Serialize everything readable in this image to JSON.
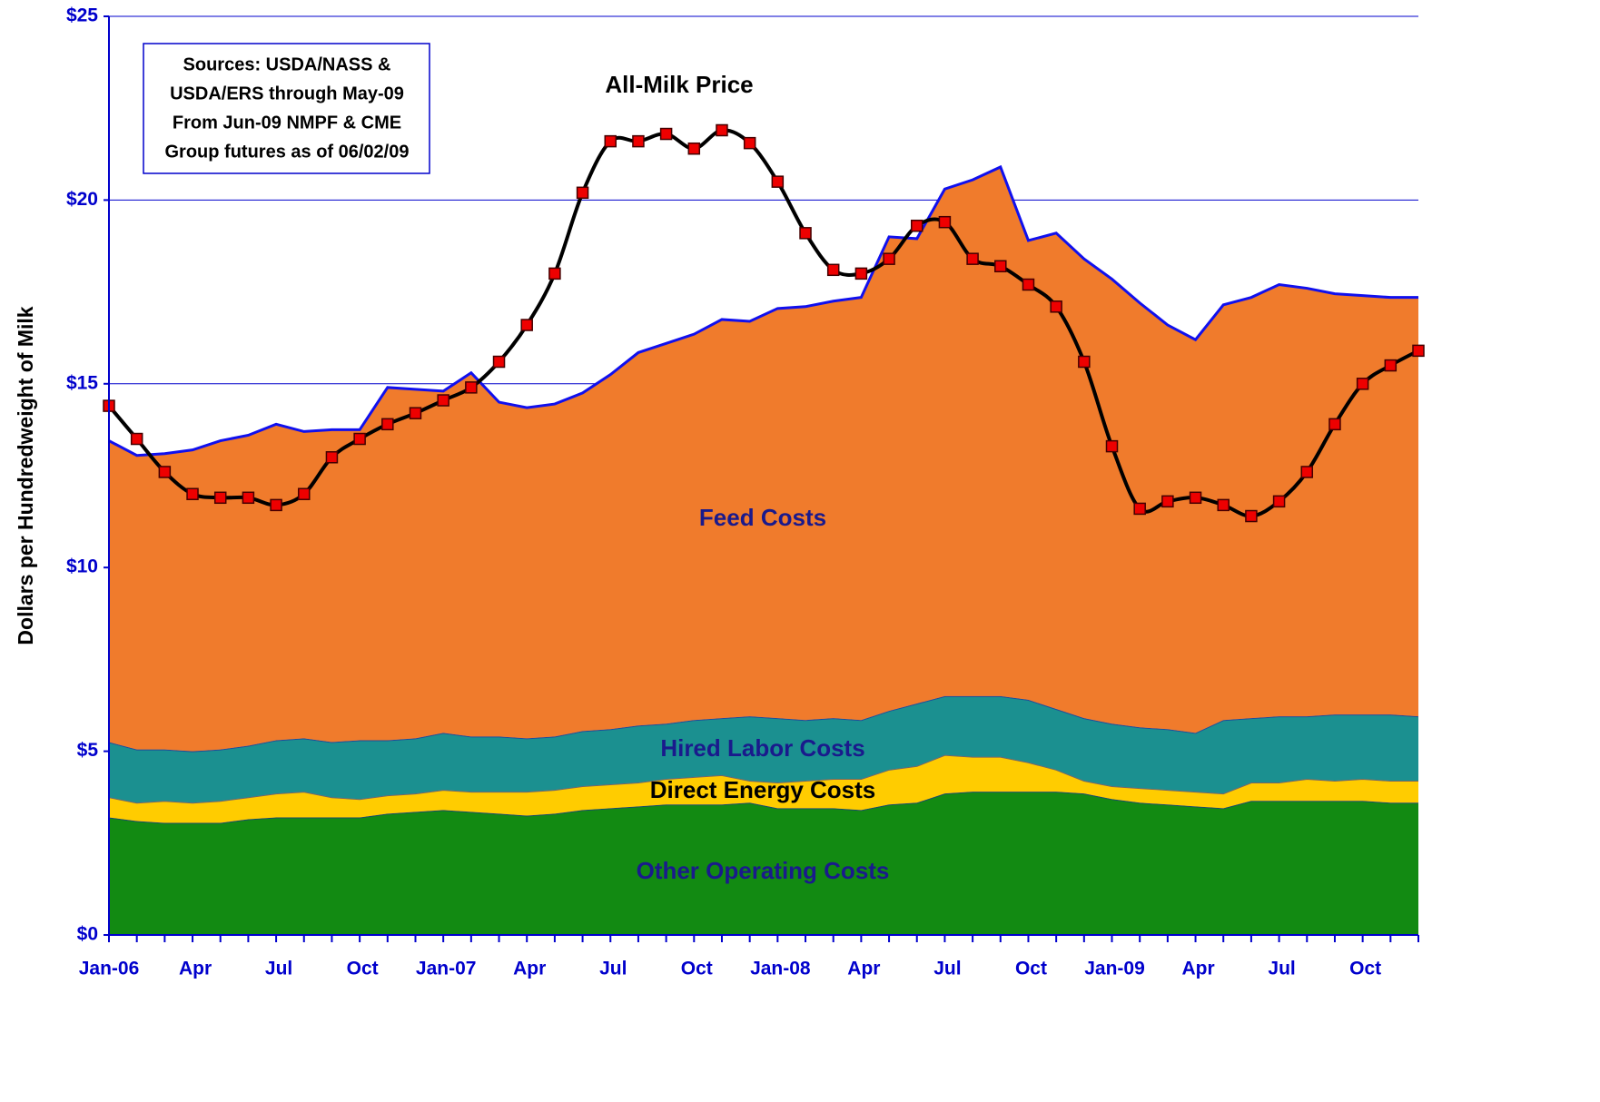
{
  "chart_data": {
    "type": "area",
    "stacked": true,
    "ylabel": "Dollars per Hundredweight of Milk",
    "annotation": [
      "Sources:   USDA/NASS &",
      "USDA/ERS through May-09",
      "From Jun-09 NMPF & CME",
      "Group futures as of 06/02/09"
    ],
    "categories": [
      "Jan-06",
      null,
      null,
      "Apr",
      null,
      null,
      "Jul",
      null,
      null,
      "Oct",
      null,
      null,
      "Jan-07",
      null,
      null,
      "Apr",
      null,
      null,
      "Jul",
      null,
      null,
      "Oct",
      null,
      null,
      "Jan-08",
      null,
      null,
      "Apr",
      null,
      null,
      "Jul",
      null,
      null,
      "Oct",
      null,
      null,
      "Jan-09",
      null,
      null,
      "Apr",
      null,
      null,
      "Jul",
      null,
      null,
      "Oct",
      null,
      null
    ],
    "ylim": [
      0,
      25
    ],
    "yticks": [
      {
        "value": 0,
        "label": "$0"
      },
      {
        "value": 5,
        "label": "$5"
      },
      {
        "value": 10,
        "label": "$10"
      },
      {
        "value": 15,
        "label": "$15"
      },
      {
        "value": 20,
        "label": "$20"
      },
      {
        "value": 25,
        "label": "$25"
      }
    ],
    "grid": true,
    "grid_color": "#0000cc",
    "series": [
      {
        "name": "Other Operating Costs",
        "type": "area",
        "color": "#128a12",
        "values": [
          3.2,
          3.1,
          3.05,
          3.05,
          3.05,
          3.15,
          3.2,
          3.2,
          3.2,
          3.2,
          3.3,
          3.35,
          3.4,
          3.35,
          3.3,
          3.25,
          3.3,
          3.4,
          3.45,
          3.5,
          3.55,
          3.55,
          3.55,
          3.6,
          3.45,
          3.45,
          3.45,
          3.4,
          3.55,
          3.6,
          3.85,
          3.9,
          3.9,
          3.9,
          3.9,
          3.85,
          3.7,
          3.6,
          3.55,
          3.5,
          3.45,
          3.65,
          3.65,
          3.65,
          3.65,
          3.65,
          3.6,
          3.6
        ]
      },
      {
        "name": "Direct Energy Costs",
        "type": "area",
        "color": "#ffcc00",
        "values": [
          0.55,
          0.5,
          0.6,
          0.55,
          0.6,
          0.6,
          0.65,
          0.7,
          0.55,
          0.5,
          0.5,
          0.5,
          0.55,
          0.55,
          0.6,
          0.65,
          0.65,
          0.65,
          0.65,
          0.65,
          0.7,
          0.75,
          0.8,
          0.6,
          0.7,
          0.75,
          0.8,
          0.85,
          0.95,
          1.0,
          1.05,
          0.95,
          0.95,
          0.8,
          0.6,
          0.35,
          0.35,
          0.4,
          0.4,
          0.4,
          0.4,
          0.5,
          0.5,
          0.6,
          0.55,
          0.6,
          0.6,
          0.6
        ]
      },
      {
        "name": "Hired Labor Costs",
        "type": "area",
        "color": "#1b9090",
        "values": [
          1.5,
          1.45,
          1.4,
          1.4,
          1.4,
          1.4,
          1.45,
          1.45,
          1.5,
          1.6,
          1.5,
          1.5,
          1.55,
          1.5,
          1.5,
          1.45,
          1.45,
          1.5,
          1.5,
          1.55,
          1.5,
          1.55,
          1.55,
          1.75,
          1.75,
          1.65,
          1.65,
          1.6,
          1.6,
          1.7,
          1.6,
          1.65,
          1.65,
          1.7,
          1.65,
          1.7,
          1.7,
          1.65,
          1.65,
          1.6,
          2.0,
          1.75,
          1.8,
          1.7,
          1.8,
          1.75,
          1.8,
          1.75
        ]
      },
      {
        "name": "Feed Costs",
        "type": "area",
        "color": "#f07b2c",
        "values": [
          8.2,
          8.0,
          8.05,
          8.2,
          8.4,
          8.45,
          8.6,
          8.35,
          8.5,
          8.45,
          9.6,
          9.5,
          9.3,
          9.9,
          9.1,
          9.0,
          9.05,
          9.2,
          9.65,
          10.15,
          10.35,
          10.5,
          10.85,
          10.75,
          11.15,
          11.25,
          11.35,
          11.5,
          12.9,
          12.65,
          13.8,
          14.05,
          14.4,
          12.5,
          12.95,
          12.5,
          12.1,
          11.55,
          11.0,
          10.7,
          11.3,
          11.45,
          11.75,
          11.65,
          11.45,
          11.4,
          11.35,
          11.4
        ]
      },
      {
        "name": "All-Milk Price",
        "type": "line",
        "color": "#000000",
        "marker_color": "#ee0000",
        "values": [
          14.4,
          13.5,
          12.6,
          12.0,
          11.9,
          11.9,
          11.7,
          12.0,
          13.0,
          13.5,
          13.9,
          14.2,
          14.55,
          14.9,
          15.6,
          16.6,
          18.0,
          20.2,
          21.6,
          21.6,
          21.8,
          21.4,
          21.9,
          21.55,
          20.5,
          19.1,
          18.1,
          18.0,
          18.4,
          19.3,
          19.4,
          18.4,
          18.2,
          17.7,
          17.1,
          15.6,
          13.3,
          11.6,
          11.8,
          11.9,
          11.7,
          11.4,
          11.8,
          12.6,
          13.9,
          15.0,
          15.5,
          15.9
        ]
      }
    ]
  }
}
